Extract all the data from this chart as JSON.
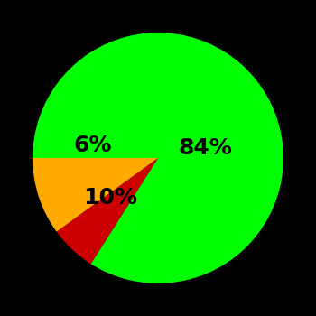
{
  "slices": [
    84,
    6,
    10
  ],
  "colors": [
    "#00ff00",
    "#cc0000",
    "#ffaa00"
  ],
  "labels": [
    "84%",
    "6%",
    "10%"
  ],
  "background_color": "#000000",
  "startangle": 180,
  "figsize": [
    3.5,
    3.5
  ],
  "dpi": 100,
  "label_fontsize": 18,
  "label_fontweight": "bold",
  "label_color": "#000000"
}
